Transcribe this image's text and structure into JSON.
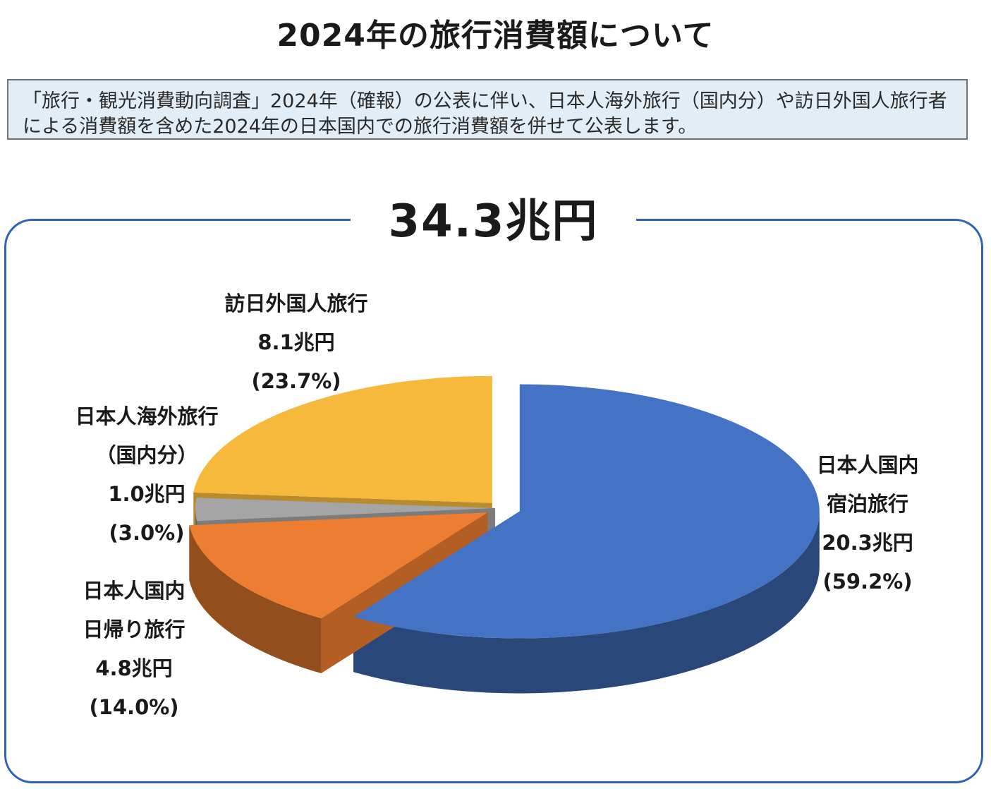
{
  "title": "2024年の旅行消費額について",
  "note": "「旅行・観光消費動向調査」2024年（確報）の公表に伴い、日本人海外旅行（国内分）や訪日外国人旅行者による消費額を含めた2024年の日本国内での旅行消費額を併せて公表します。",
  "total": "34.3兆円",
  "chart_data": {
    "type": "pie",
    "title": "",
    "unit": "兆円",
    "slices": [
      {
        "name": "日本人国内宿泊旅行",
        "value": 20.3,
        "percent": 59.2,
        "color": "#4472c4",
        "label_lines": [
          "日本人国内",
          "宿泊旅行"
        ],
        "value_label": "20.3兆円",
        "percent_label": "(59.2%)"
      },
      {
        "name": "日本人国内日帰り旅行",
        "value": 4.8,
        "percent": 14.0,
        "color": "#ed7d31",
        "label_lines": [
          "日本人国内",
          "日帰り旅行"
        ],
        "value_label": "4.8兆円",
        "percent_label": "(14.0%)"
      },
      {
        "name": "日本人海外旅行（国内分）",
        "value": 1.0,
        "percent": 3.0,
        "color": "#a5a5a5",
        "label_lines": [
          "日本人海外旅行",
          "（国内分）"
        ],
        "value_label": "1.0兆円",
        "percent_label": "(3.0%)"
      },
      {
        "name": "訪日外国人旅行",
        "value": 8.1,
        "percent": 23.7,
        "color": "#f6b93b",
        "label_lines": [
          "訪日外国人旅行"
        ],
        "value_label": "8.1兆円",
        "percent_label": "(23.7%)"
      }
    ]
  }
}
